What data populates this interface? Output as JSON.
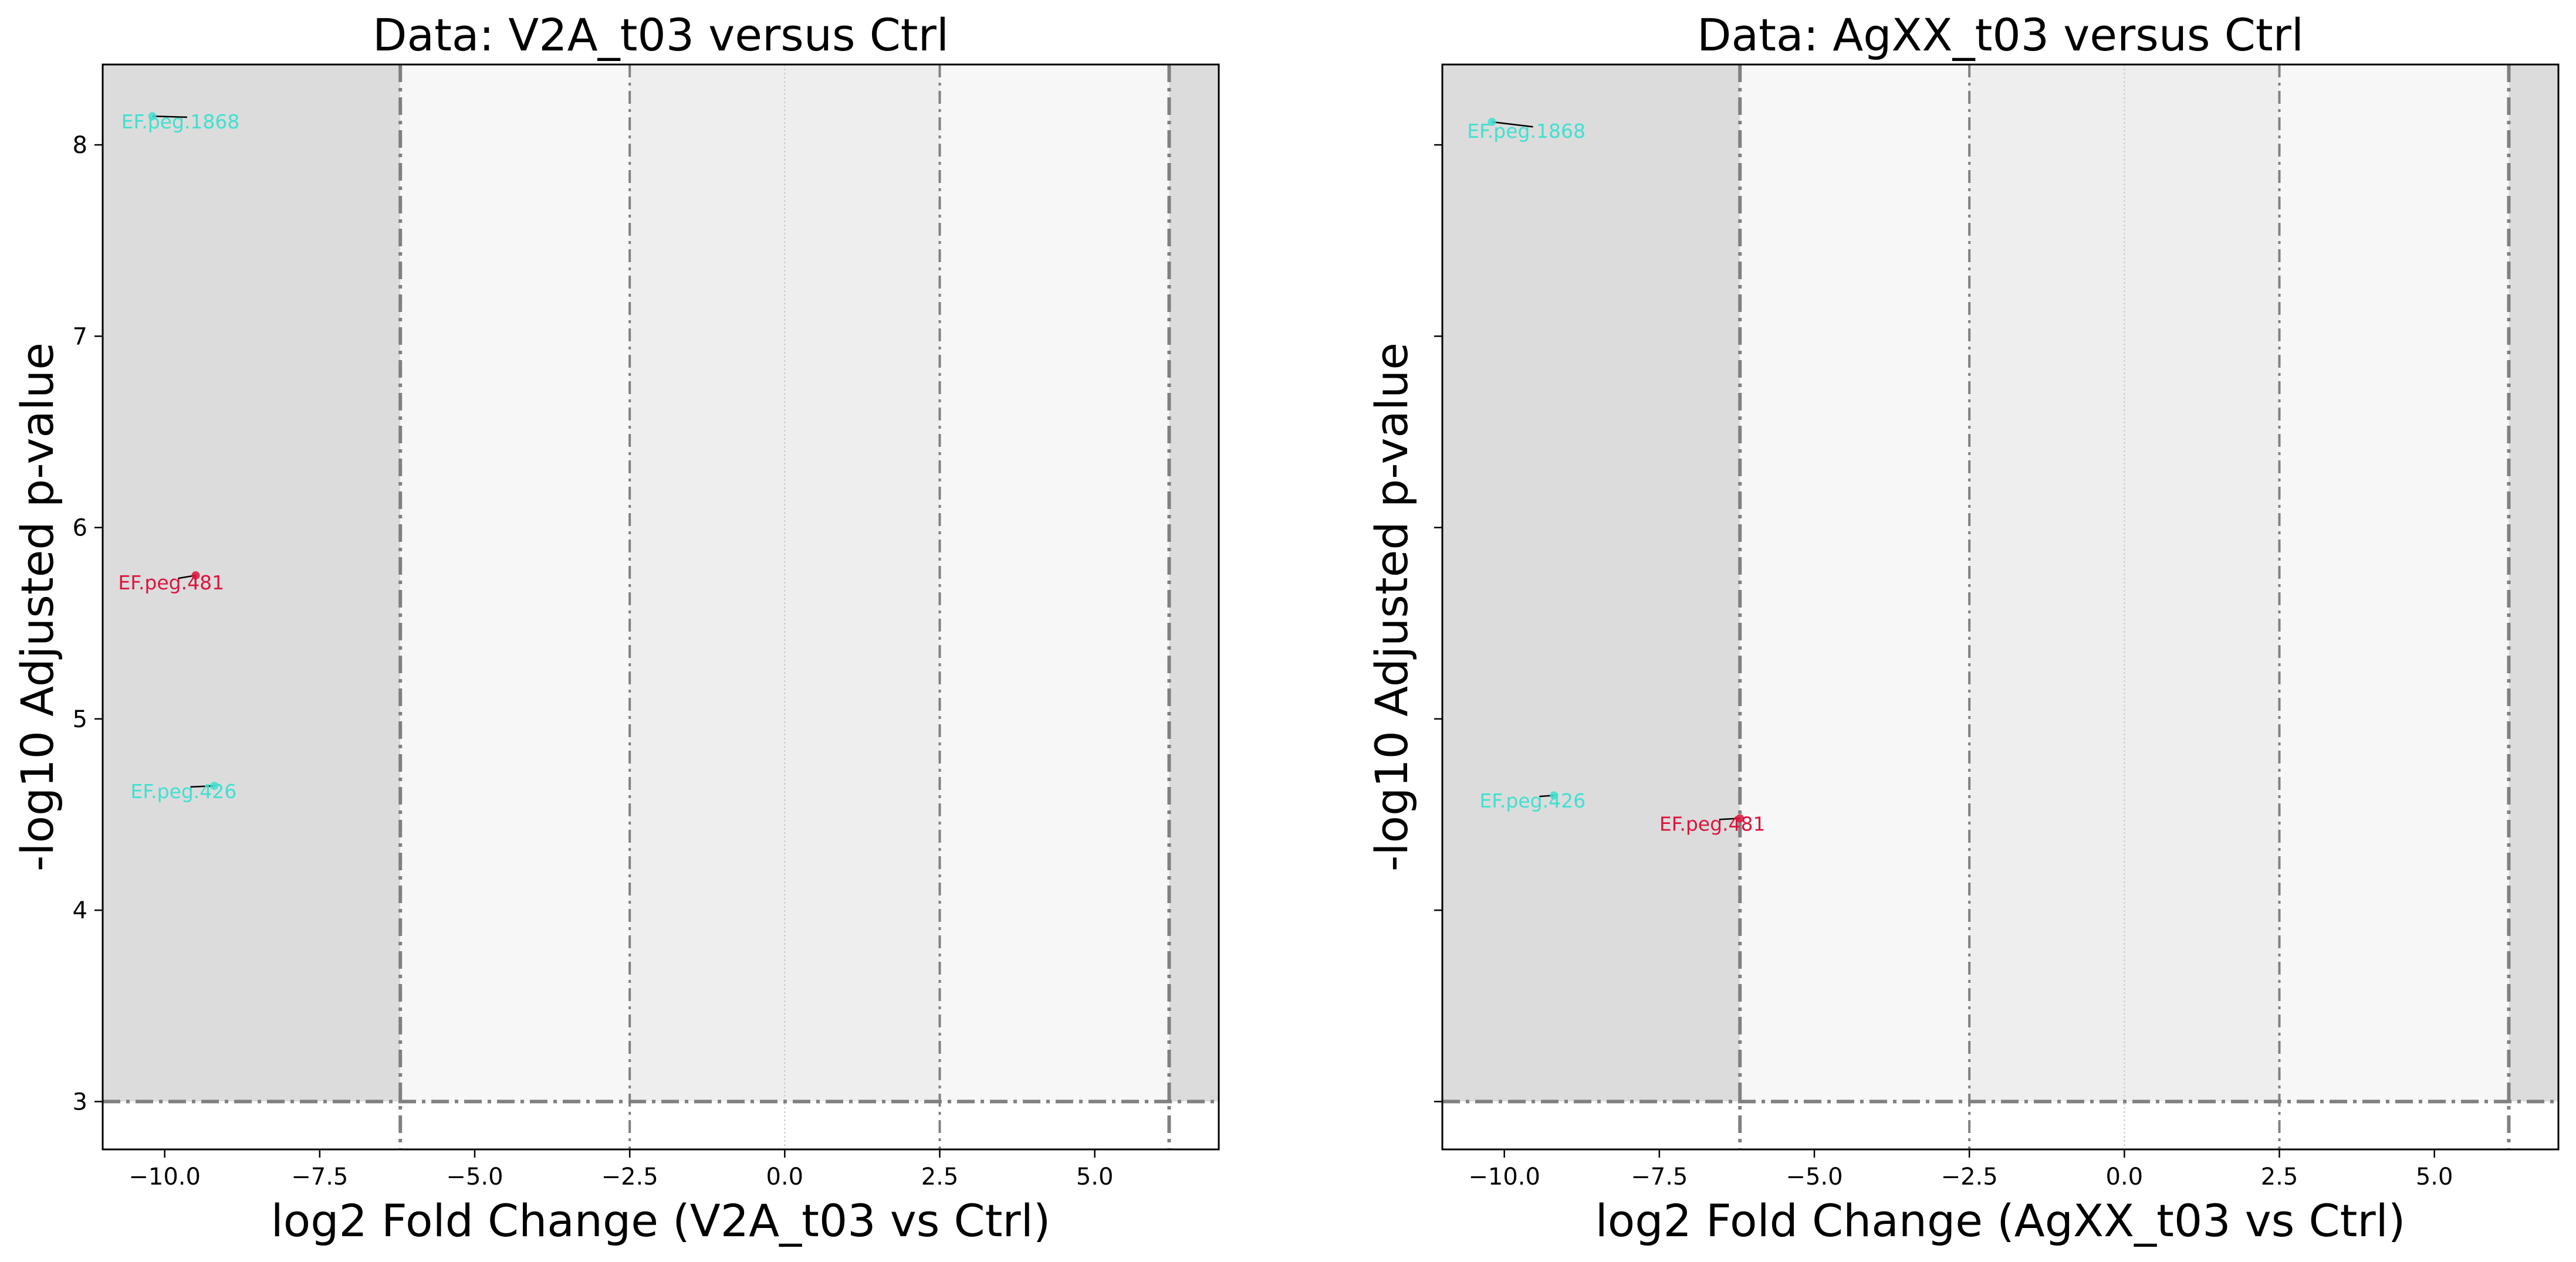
{
  "chart_data": [
    {
      "type": "scatter",
      "title": "Data: V2A_t03 versus Ctrl",
      "xlabel": "log2 Fold Change (V2A_t03 vs Ctrl)",
      "ylabel": "-log10 Adjusted p-value",
      "xlim": [
        -11.0,
        7.0
      ],
      "ylim": [
        2.75,
        8.42
      ],
      "xticks": [
        -10.0,
        -7.5,
        -5.0,
        -2.5,
        0.0,
        2.5,
        5.0
      ],
      "xtick_labels": [
        "−10.0",
        "−7.5",
        "−5.0",
        "−2.5",
        "0.0",
        "2.5",
        "5.0"
      ],
      "yticks": [
        3,
        4,
        5,
        6,
        7,
        8
      ],
      "ytick_labels": [
        "3",
        "4",
        "5",
        "6",
        "7",
        "8"
      ],
      "show_yticklabels": true,
      "show_ylabel": true,
      "thresholds": {
        "x": [
          -6.2,
          -2.5,
          2.5,
          6.2
        ],
        "y": 3.0
      },
      "points": [
        {
          "label": "EF.peg.1868",
          "x": -10.2,
          "y": 8.15,
          "color": "#40e0d0",
          "label_x": -10.7,
          "label_y": 8.12
        },
        {
          "label": "EF.peg.481",
          "x": -9.5,
          "y": 5.75,
          "color": "#dc143c",
          "label_x": -10.75,
          "label_y": 5.71
        },
        {
          "label": "EF.peg.426",
          "x": -9.2,
          "y": 4.65,
          "color": "#40e0d0",
          "label_x": -10.55,
          "label_y": 4.62
        }
      ]
    },
    {
      "type": "scatter",
      "title": "Data: AgXX_t03 versus Ctrl",
      "xlabel": "log2 Fold Change (AgXX_t03 vs Ctrl)",
      "ylabel": "-log10 Adjusted p-value",
      "xlim": [
        -11.0,
        7.0
      ],
      "ylim": [
        2.75,
        8.42
      ],
      "xticks": [
        -10.0,
        -7.5,
        -5.0,
        -2.5,
        0.0,
        2.5,
        5.0
      ],
      "xtick_labels": [
        "−10.0",
        "−7.5",
        "−5.0",
        "−2.5",
        "0.0",
        "2.5",
        "5.0"
      ],
      "yticks": [
        3,
        4,
        5,
        6,
        7,
        8
      ],
      "ytick_labels": [
        "3",
        "4",
        "5",
        "6",
        "7",
        "8"
      ],
      "show_yticklabels": false,
      "show_ylabel": true,
      "thresholds": {
        "x": [
          -6.2,
          -2.5,
          2.5,
          6.2
        ],
        "y": 3.0
      },
      "points": [
        {
          "label": "EF.peg.1868",
          "x": -10.2,
          "y": 8.12,
          "color": "#40e0d0",
          "label_x": -10.6,
          "label_y": 8.07
        },
        {
          "label": "EF.peg.426",
          "x": -9.2,
          "y": 4.6,
          "color": "#40e0d0",
          "label_x": -10.4,
          "label_y": 4.57
        },
        {
          "label": "EF.peg.481",
          "x": -6.2,
          "y": 4.48,
          "color": "#dc143c",
          "label_x": -7.5,
          "label_y": 4.45
        }
      ]
    }
  ],
  "colors": {
    "up": "#dc143c",
    "down": "#40e0d0",
    "region_outer": "#dcdcdc",
    "region_mid": "#f7f7f7",
    "region_inner": "#eeeeee",
    "threshold_line": "#808080"
  }
}
